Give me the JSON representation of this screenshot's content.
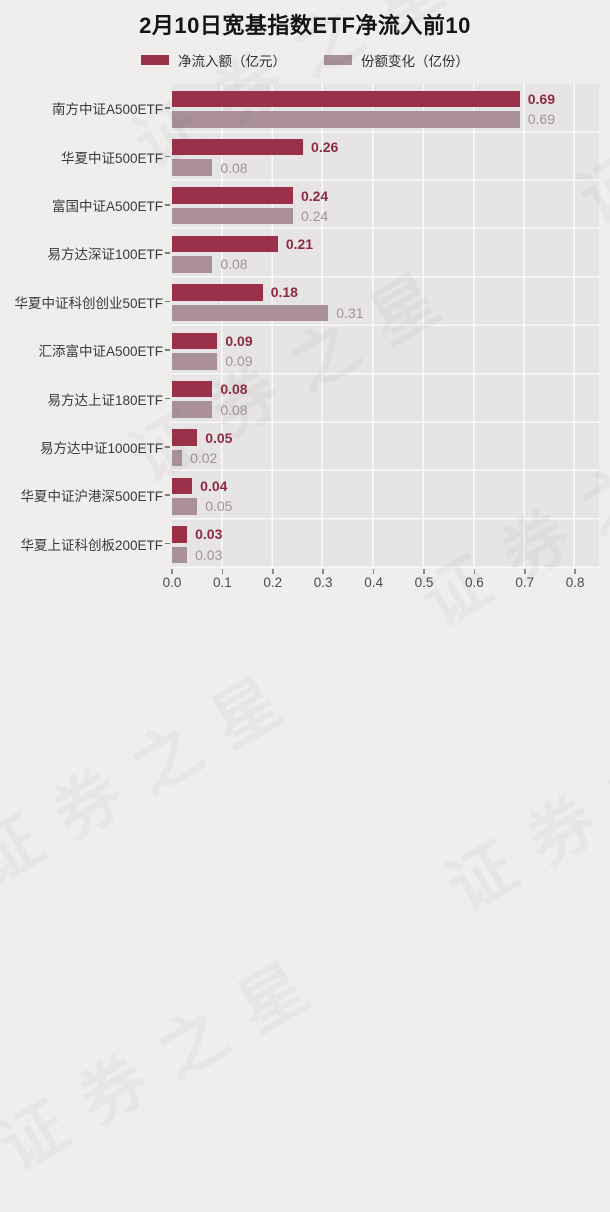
{
  "title": "2月10日宽基指数ETF净流入前10",
  "watermark": {
    "text": "证券之星"
  },
  "colors": {
    "net_inflow_bar": "#9a3148",
    "share_change_bar": "#a9909b",
    "net_inflow_value_text": "#8e2a41",
    "share_change_value_text": "#a2929a",
    "plot_background": "#e6e4e4",
    "page_background": "#f0eeed"
  },
  "legend": [
    {
      "label": "净流入额（亿元）",
      "color": "#9a3148"
    },
    {
      "label": "份额变化（亿份）",
      "color": "#a9909b"
    }
  ],
  "chart_data": {
    "type": "bar",
    "orientation": "horizontal",
    "title": "2月10日宽基指数ETF净流入前10",
    "categories": [
      "南方中证A500ETF",
      "华夏中证500ETF",
      "富国中证A500ETF",
      "易方达深证100ETF",
      "华夏中证科创创业50ETF",
      "汇添富中证A500ETF",
      "易方达上证180ETF",
      "易方达中证1000ETF",
      "华夏中证沪港深500ETF",
      "华夏上证科创板200ETF"
    ],
    "series": [
      {
        "name": "净流入额（亿元）",
        "color": "#9a3148",
        "values": [
          0.69,
          0.26,
          0.24,
          0.21,
          0.18,
          0.09,
          0.08,
          0.05,
          0.04,
          0.03
        ]
      },
      {
        "name": "份额变化（亿份）",
        "color": "#a9909b",
        "values": [
          0.69,
          0.08,
          0.24,
          0.08,
          0.31,
          0.09,
          0.08,
          0.02,
          0.05,
          0.03
        ]
      }
    ],
    "xlim": [
      0,
      0.8
    ],
    "x_ticks": [
      "0.0",
      "0.1",
      "0.2",
      "0.3",
      "0.4",
      "0.5",
      "0.6",
      "0.7",
      "0.8"
    ],
    "grid": true,
    "legend_position": "top"
  }
}
